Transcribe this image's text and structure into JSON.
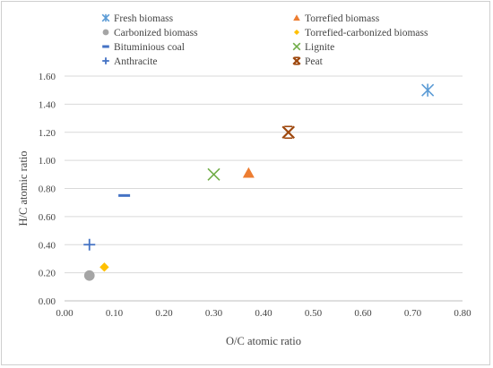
{
  "chart_data": {
    "type": "scatter",
    "xlabel": "O/C atomic ratio",
    "ylabel": "H/C atomic ratio",
    "xlim": [
      0,
      0.8
    ],
    "ylim": [
      0,
      1.6
    ],
    "x_ticks": [
      "0.00",
      "0.10",
      "0.20",
      "0.30",
      "0.40",
      "0.50",
      "0.60",
      "0.70",
      "0.80"
    ],
    "y_ticks": [
      "0.00",
      "0.20",
      "0.40",
      "0.60",
      "0.80",
      "1.00",
      "1.20",
      "1.40",
      "1.60"
    ],
    "grid": "horizontal",
    "legend_position": "top",
    "series": [
      {
        "name": "Fresh biomass",
        "marker": "asterisk",
        "color": "#5B9BD5",
        "x": [
          0.73
        ],
        "y": [
          1.5
        ]
      },
      {
        "name": "Torrefied biomass",
        "marker": "triangle",
        "color": "#ED7D31",
        "x": [
          0.37
        ],
        "y": [
          0.91
        ]
      },
      {
        "name": "Carbonized biomass",
        "marker": "circle",
        "color": "#A5A5A5",
        "x": [
          0.05
        ],
        "y": [
          0.18
        ]
      },
      {
        "name": "Torrefied-carbonized biomass",
        "marker": "diamond",
        "color": "#FFC000",
        "x": [
          0.08
        ],
        "y": [
          0.24
        ]
      },
      {
        "name": "Bituminious coal",
        "marker": "dash",
        "color": "#4472C4",
        "x": [
          0.12
        ],
        "y": [
          0.75
        ]
      },
      {
        "name": "Lignite",
        "marker": "x",
        "color": "#70AD47",
        "x": [
          0.3
        ],
        "y": [
          0.9
        ]
      },
      {
        "name": "Anthracite",
        "marker": "plus",
        "color": "#4472C4",
        "x": [
          0.05
        ],
        "y": [
          0.4
        ]
      },
      {
        "name": "Peat",
        "marker": "star-x",
        "color": "#9E480E",
        "x": [
          0.45
        ],
        "y": [
          1.2
        ]
      }
    ]
  }
}
